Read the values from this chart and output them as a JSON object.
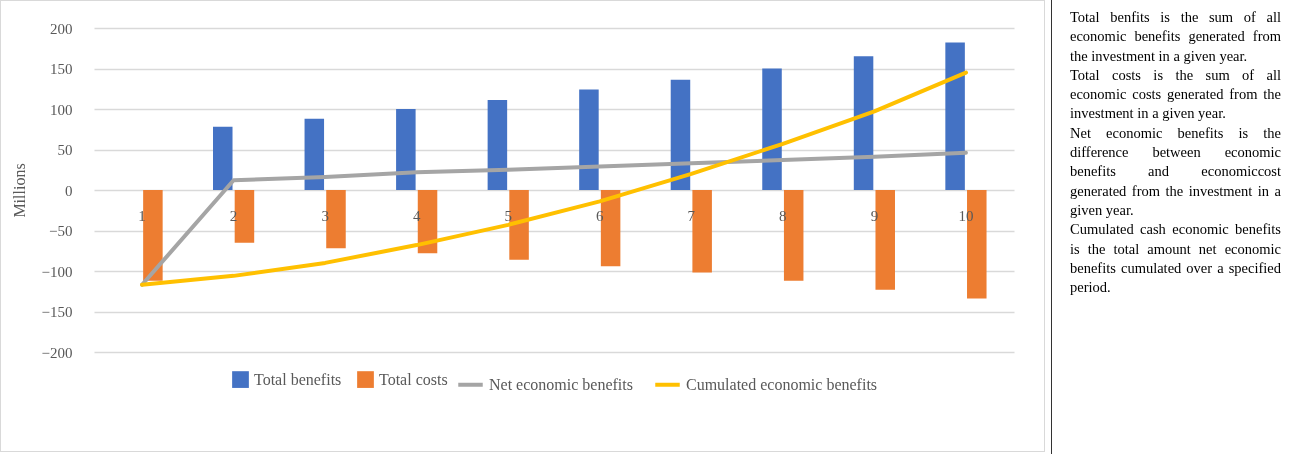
{
  "chart_data": {
    "type": "bar",
    "ylabel": "Millions",
    "categories": [
      "1",
      "2",
      "3",
      "4",
      "5",
      "6",
      "7",
      "8",
      "9",
      "10"
    ],
    "series": [
      {
        "name": "Total benefits",
        "color": "#4472c4",
        "values": [
          0,
          78,
          88,
          100,
          111,
          124,
          136,
          150,
          165,
          182
        ]
      },
      {
        "name": "Total costs",
        "color": "#ed7d31",
        "values": [
          -112,
          -65,
          -72,
          -78,
          -86,
          -94,
          -102,
          -112,
          -123,
          -134
        ]
      },
      {
        "name": "Net economic benefits",
        "type": "line",
        "color": "#a5a5a5",
        "values": [
          -117,
          12,
          16,
          22,
          25,
          29,
          33,
          37,
          41,
          46
        ]
      },
      {
        "name": "Cumulated economic benefits",
        "type": "line",
        "color": "#ffc000",
        "values": [
          -117,
          -106,
          -90,
          -68,
          -43,
          -14,
          20,
          57,
          97,
          145
        ]
      }
    ],
    "ylim": [
      -200,
      200
    ],
    "yticks": [
      -200,
      -150,
      -100,
      -50,
      0,
      50,
      100,
      150,
      200
    ],
    "grid": "y",
    "legend": "bottom",
    "annotations": [
      "Total benfits is the sum of all economic benefits generated from the investment in a given year.",
      "Total costs is the sum of all economic costs generated from the investment in a given year.",
      "Net economic benefits is the difference between economic benefits and economiccost generated from the investment in a given year.",
      "Cumulated cash economic benefits is the total amount net economic benefits cumulated over a specified period."
    ]
  }
}
